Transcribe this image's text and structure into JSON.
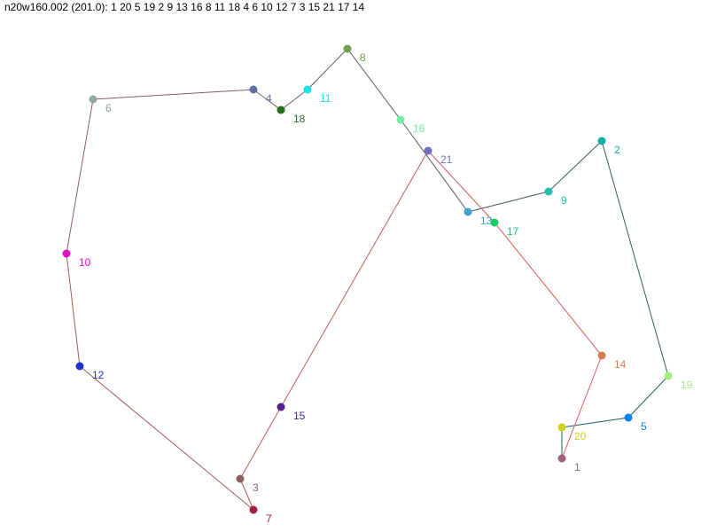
{
  "title": "n20w160.002 (201.0): 1 20 5 19 2 9 13 16 8 11 18 4 6 10 12 7 3 15 21 17 14",
  "tour": [
    1,
    20,
    5,
    19,
    2,
    9,
    13,
    16,
    8,
    11,
    18,
    4,
    6,
    10,
    12,
    7,
    3,
    15,
    21,
    17,
    14
  ],
  "edge_color_start": "#0f5f5f",
  "edge_color_end": "#e85a5a",
  "nodes": [
    {
      "id": "1",
      "color": "#a06080"
    },
    {
      "id": "2",
      "color": "#10b0a0"
    },
    {
      "id": "3",
      "color": "#906060"
    },
    {
      "id": "4",
      "color": "#6070a0"
    },
    {
      "id": "5",
      "color": "#1080f0"
    },
    {
      "id": "6",
      "color": "#90a8a0"
    },
    {
      "id": "7",
      "color": "#a02040"
    },
    {
      "id": "8",
      "color": "#70a050"
    },
    {
      "id": "9",
      "color": "#20c0b0"
    },
    {
      "id": "10",
      "color": "#e010c0"
    },
    {
      "id": "11",
      "color": "#20e0e8"
    },
    {
      "id": "12",
      "color": "#2030d0"
    },
    {
      "id": "13",
      "color": "#40a0d0"
    },
    {
      "id": "14",
      "color": "#d08050"
    },
    {
      "id": "15",
      "color": "#502090"
    },
    {
      "id": "16",
      "color": "#70f0a0"
    },
    {
      "id": "17",
      "color": "#10d060"
    },
    {
      "id": "18",
      "color": "#207020"
    },
    {
      "id": "19",
      "color": "#a0f080"
    },
    {
      "id": "20",
      "color": "#d0d020"
    },
    {
      "id": "21",
      "color": "#7070c0"
    }
  ]
}
